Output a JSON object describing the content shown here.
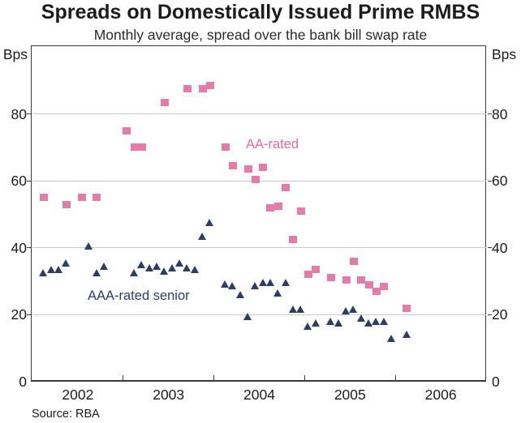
{
  "header": {
    "title": "Spreads on Domestically Issued Prime RMBS",
    "subtitle": "Monthly average, spread over the bank bill swap rate"
  },
  "footer": {
    "source": "Source: RBA"
  },
  "chart_data": {
    "type": "scatter",
    "title": "Spreads on Domestically Issued Prime RMBS",
    "subtitle": "Monthly average, spread over the bank bill swap rate",
    "units": "Bps",
    "ylabel": "Bps",
    "ylim": [
      0,
      100
    ],
    "y_tick_values": [
      0,
      20,
      40,
      60,
      80
    ],
    "grid_values": [
      20,
      40,
      60,
      80
    ],
    "grid": true,
    "x_start_year": 2002,
    "x_end_year_exclusive": 2007,
    "x_tick_years": [
      2002,
      2003,
      2004,
      2005,
      2006
    ],
    "legend_position": "inline-annotations",
    "colors": {
      "aa_pink": "#e67aa8",
      "aaa_navy": "#2b3d69"
    },
    "series": [
      {
        "name": "AA-rated",
        "marker": "square",
        "color": "#e67aa8",
        "points": [
          [
            "2002-02",
            55
          ],
          [
            "2002-05",
            53
          ],
          [
            "2002-07",
            55
          ],
          [
            "2002-09",
            55
          ],
          [
            "2003-01",
            75
          ],
          [
            "2003-02",
            70
          ],
          [
            "2003-03",
            70
          ],
          [
            "2003-06",
            83.5
          ],
          [
            "2003-09",
            87.5
          ],
          [
            "2003-11",
            87.5
          ],
          [
            "2003-12",
            88.5
          ],
          [
            "2004-02",
            70
          ],
          [
            "2004-03",
            64.5
          ],
          [
            "2004-05",
            63.5
          ],
          [
            "2004-06",
            60.5
          ],
          [
            "2004-07",
            64
          ],
          [
            "2004-08",
            52
          ],
          [
            "2004-09",
            52.5
          ],
          [
            "2004-10",
            58
          ],
          [
            "2004-11",
            42.5
          ],
          [
            "2004-12",
            51
          ],
          [
            "2005-01",
            32
          ],
          [
            "2005-02",
            33.5
          ],
          [
            "2005-04",
            31
          ],
          [
            "2005-06",
            30.5
          ],
          [
            "2005-07",
            36
          ],
          [
            "2005-08",
            30.5
          ],
          [
            "2005-09",
            29
          ],
          [
            "2005-10",
            27
          ],
          [
            "2005-11",
            28.5
          ],
          [
            "2006-02",
            22
          ]
        ]
      },
      {
        "name": "AAA-rated senior",
        "marker": "triangle",
        "color": "#2b3d69",
        "points": [
          [
            "2002-02",
            32.5
          ],
          [
            "2002-03",
            33.5
          ],
          [
            "2002-04",
            33.5
          ],
          [
            "2002-05",
            35.5
          ],
          [
            "2002-08",
            40.5
          ],
          [
            "2002-09",
            32.5
          ],
          [
            "2002-10",
            34.5
          ],
          [
            "2003-02",
            32.5
          ],
          [
            "2003-03",
            35
          ],
          [
            "2003-04",
            34
          ],
          [
            "2003-05",
            34.5
          ],
          [
            "2003-06",
            33
          ],
          [
            "2003-07",
            34
          ],
          [
            "2003-08",
            35.5
          ],
          [
            "2003-09",
            34
          ],
          [
            "2003-10",
            33.5
          ],
          [
            "2003-11",
            43.5
          ],
          [
            "2003-12",
            47.5
          ],
          [
            "2004-02",
            29
          ],
          [
            "2004-03",
            28.5
          ],
          [
            "2004-04",
            26
          ],
          [
            "2004-05",
            19.5
          ],
          [
            "2004-06",
            28.5
          ],
          [
            "2004-07",
            29.5
          ],
          [
            "2004-08",
            29.5
          ],
          [
            "2004-09",
            26.5
          ],
          [
            "2004-10",
            29.5
          ],
          [
            "2004-11",
            21.5
          ],
          [
            "2004-12",
            21.5
          ],
          [
            "2005-01",
            16.5
          ],
          [
            "2005-02",
            17.5
          ],
          [
            "2005-04",
            18
          ],
          [
            "2005-05",
            17.5
          ],
          [
            "2005-06",
            21
          ],
          [
            "2005-07",
            21.5
          ],
          [
            "2005-08",
            19
          ],
          [
            "2005-09",
            17.5
          ],
          [
            "2005-10",
            18
          ],
          [
            "2005-11",
            18
          ],
          [
            "2005-12",
            13
          ],
          [
            "2006-02",
            14
          ]
        ]
      }
    ],
    "annotations": [
      {
        "text": "AA-rated",
        "series": "AA-rated"
      },
      {
        "text": "AAA-rated senior",
        "series": "AAA-rated senior"
      }
    ]
  }
}
